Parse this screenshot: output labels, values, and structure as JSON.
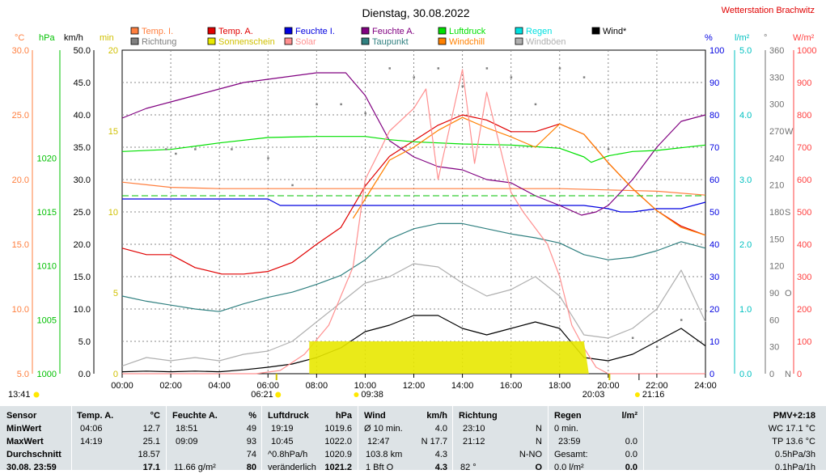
{
  "header": {
    "title": "Dienstag, 30.08.2022",
    "station": "Wetterstation Brachwitz"
  },
  "legend": [
    {
      "label": "Temp. I.",
      "color": "#ff7f3f"
    },
    {
      "label": "Richtung",
      "color": "#808080"
    },
    {
      "label": "Temp. A.",
      "color": "#e00000"
    },
    {
      "label": "Sonnenschein",
      "color": "#e8e800"
    },
    {
      "label": "Feuchte I.",
      "color": "#0000e0"
    },
    {
      "label": "Solar",
      "color": "#ff9090"
    },
    {
      "label": "Feuchte A.",
      "color": "#800080"
    },
    {
      "label": "Taupunkt",
      "color": "#308080"
    },
    {
      "label": "Luftdruck",
      "color": "#00e000"
    },
    {
      "label": "Windchill",
      "color": "#ff8000"
    },
    {
      "label": "Regen",
      "color": "#00e0e0"
    },
    {
      "label": "Windböen",
      "color": "#b0b0b0"
    },
    {
      "label": "Wind*",
      "color": "#000000"
    }
  ],
  "axis_units": {
    "temp": "°C",
    "pressure": "hPa",
    "wind": "km/h",
    "sun": "min",
    "humidity": "%",
    "rain": "l/m²",
    "direction": "°",
    "solar": "W/m²"
  },
  "chart_data": {
    "type": "line",
    "x_ticks": [
      "00:00",
      "02:00",
      "04:00",
      "06:00",
      "08:00",
      "10:00",
      "12:00",
      "14:00",
      "16:00",
      "18:00",
      "20:00",
      "22:00",
      "24:00"
    ],
    "x_range": [
      0,
      24
    ],
    "axes": {
      "temp": {
        "range": [
          5,
          30
        ],
        "ticks": [
          "5.0",
          "10.0",
          "15.0",
          "20.0",
          "25.0",
          "30.0"
        ],
        "color": "#ff7f3f"
      },
      "pressure": {
        "range": [
          1000,
          1030
        ],
        "ticks": [
          "1000",
          "1005",
          "1010",
          "1015",
          "1020"
        ],
        "color": "#00c000"
      },
      "wind": {
        "range": [
          0,
          50
        ],
        "ticks": [
          "0.0",
          "5.0",
          "10.0",
          "15.0",
          "20.0",
          "25.0",
          "30.0",
          "35.0",
          "40.0",
          "45.0",
          "50.0"
        ],
        "color": "#000000"
      },
      "sun": {
        "range": [
          0,
          20
        ],
        "ticks": [
          "0",
          "5",
          "10",
          "15",
          "20"
        ],
        "color": "#d0c000"
      },
      "humidity": {
        "range": [
          0,
          100
        ],
        "ticks": [
          "0",
          "10",
          "20",
          "30",
          "40",
          "50",
          "60",
          "70",
          "80",
          "90",
          "100"
        ],
        "color": "#0000e0"
      },
      "rain": {
        "range": [
          0,
          5
        ],
        "ticks": [
          "0.0",
          "1.0",
          "2.0",
          "3.0",
          "4.0",
          "5.0"
        ],
        "color": "#00c0c0"
      },
      "direction": {
        "range": [
          0,
          360
        ],
        "ticks": [
          "0",
          "30",
          "60",
          "90",
          "120",
          "150",
          "180",
          "210",
          "240",
          "270",
          "300",
          "330",
          "360"
        ],
        "labels": {
          "0": "N",
          "90": "O",
          "180": "S",
          "270": "W"
        },
        "color": "#707070"
      },
      "solar": {
        "range": [
          0,
          1000
        ],
        "ticks": [
          "0",
          "100",
          "200",
          "300",
          "400",
          "500",
          "600",
          "700",
          "800",
          "900",
          "1000"
        ],
        "color": "#ff4040"
      }
    },
    "series": [
      {
        "name": "Temp. I.",
        "axis": "temp",
        "color": "#ff7f3f",
        "x": [
          0,
          1,
          2,
          4,
          6,
          8,
          10,
          12,
          14,
          16,
          18,
          20,
          22,
          24
        ],
        "y": [
          19.8,
          19.6,
          19.4,
          19.3,
          19.3,
          19.3,
          19.3,
          19.3,
          19.3,
          19.3,
          19.3,
          19.2,
          19.1,
          18.8
        ]
      },
      {
        "name": "Temp. A.",
        "axis": "temp",
        "color": "#e00000",
        "x": [
          0,
          1,
          2,
          3,
          4.1,
          5,
          6,
          7,
          8,
          9,
          10,
          11,
          12,
          13,
          14,
          15,
          16,
          17,
          18,
          19,
          20,
          21,
          22,
          23,
          24
        ],
        "y": [
          14.7,
          14.2,
          14.2,
          13.2,
          12.7,
          12.7,
          12.9,
          13.6,
          15.0,
          16.3,
          19.5,
          21.8,
          23.0,
          24.2,
          25.0,
          24.6,
          23.7,
          23.7,
          24.3,
          23.5,
          21.3,
          19.3,
          17.6,
          16.4,
          15.7
        ]
      },
      {
        "name": "Feuchte I.",
        "axis": "humidity",
        "color": "#0000e0",
        "x": [
          0,
          2,
          4,
          6,
          6.5,
          8,
          10,
          12,
          14,
          16,
          18,
          19,
          20,
          20.5,
          21,
          22,
          23,
          24
        ],
        "y": [
          54,
          54,
          54,
          54,
          52,
          52,
          52,
          52,
          52,
          52,
          52,
          52,
          51,
          50,
          50,
          51,
          51,
          53
        ]
      },
      {
        "name": "Feuchte A.",
        "axis": "humidity",
        "color": "#800080",
        "x": [
          0,
          1,
          2,
          3,
          4,
          5,
          6,
          7,
          8,
          9,
          9.2,
          10,
          11,
          12,
          13,
          14,
          15,
          16,
          17,
          18,
          18.9,
          19.5,
          20,
          21,
          22,
          23,
          24
        ],
        "y": [
          79,
          82,
          84,
          86,
          88,
          90,
          91,
          92,
          93,
          93,
          93,
          86,
          72,
          67,
          64,
          63,
          60,
          59,
          55,
          52,
          49,
          50,
          52,
          60,
          70,
          78,
          80
        ]
      },
      {
        "name": "Taupunkt",
        "axis": "temp",
        "color": "#308080",
        "x": [
          0,
          1,
          2,
          3,
          4,
          5,
          6,
          7,
          8,
          9,
          10,
          11,
          12,
          13,
          14,
          15,
          16,
          17,
          18,
          19,
          20,
          21,
          22,
          23,
          24
        ],
        "y": [
          11.0,
          10.6,
          10.3,
          10.0,
          9.8,
          10.4,
          10.9,
          11.3,
          11.9,
          12.6,
          13.8,
          15.4,
          16.2,
          16.6,
          16.6,
          16.2,
          15.8,
          15.5,
          15.1,
          14.2,
          13.8,
          14.0,
          14.5,
          15.2,
          14.7
        ]
      },
      {
        "name": "Luftdruck",
        "axis": "pressure",
        "color": "#00e000",
        "x": [
          0,
          2,
          4,
          6,
          8,
          10,
          11,
          12,
          14,
          16,
          18,
          19,
          19.3,
          20,
          21,
          22,
          24
        ],
        "y": [
          1020.6,
          1020.8,
          1021.4,
          1021.9,
          1022.0,
          1022.0,
          1021.7,
          1021.5,
          1021.3,
          1021.2,
          1020.9,
          1020.1,
          1019.6,
          1020.2,
          1020.6,
          1020.7,
          1021.2
        ]
      },
      {
        "name": "Windchill",
        "axis": "temp",
        "color": "#ff8000",
        "x": [
          9.5,
          10,
          10.5,
          11,
          12,
          13,
          14,
          15,
          16,
          17,
          18,
          19,
          20,
          21,
          22,
          23,
          24
        ],
        "y": [
          17.0,
          18.5,
          20.0,
          21.5,
          22.5,
          23.8,
          24.8,
          24.0,
          23.3,
          22.5,
          24.3,
          23.5,
          21.3,
          19.3,
          17.6,
          16.3,
          15.7
        ]
      },
      {
        "name": "Wind*",
        "axis": "wind",
        "color": "#000000",
        "x": [
          0,
          1,
          2,
          3,
          4,
          5,
          6,
          7,
          8,
          9,
          10,
          11,
          12,
          13,
          14,
          15,
          16,
          17,
          18,
          19,
          20,
          21,
          22,
          23,
          24
        ],
        "y": [
          0.3,
          0.4,
          0.3,
          0.4,
          0.3,
          0.6,
          1.0,
          1.5,
          2.5,
          4.0,
          6.5,
          7.5,
          9.0,
          9.0,
          7.0,
          6.0,
          7.0,
          8.0,
          7.0,
          2.5,
          2.0,
          3.0,
          5.0,
          7.0,
          4.3
        ]
      },
      {
        "name": "Windböen",
        "axis": "wind",
        "color": "#b0b0b0",
        "x": [
          0,
          1,
          2,
          3,
          4,
          5,
          6,
          7,
          8,
          9,
          10,
          11,
          12,
          13,
          14,
          15,
          16,
          17,
          18,
          19,
          20,
          21,
          22,
          23,
          24
        ],
        "y": [
          1.2,
          2.5,
          2.0,
          2.5,
          2.0,
          3.0,
          3.5,
          5.0,
          8.0,
          11.0,
          14.0,
          15.0,
          17.0,
          16.5,
          14.0,
          12.0,
          13.0,
          15.0,
          12.0,
          6.0,
          5.5,
          7.0,
          10.0,
          16.0,
          8.0
        ]
      },
      {
        "name": "Solar",
        "axis": "solar",
        "color": "#ff9090",
        "x": [
          0,
          5.5,
          6.5,
          7.5,
          8.5,
          9.5,
          10,
          11,
          12,
          12.5,
          13,
          14,
          14.5,
          15,
          16,
          16.5,
          17,
          17.5,
          18,
          18.5,
          19,
          19.5,
          20,
          24
        ],
        "y": [
          0,
          0,
          10,
          60,
          150,
          330,
          600,
          750,
          820,
          880,
          600,
          940,
          650,
          870,
          560,
          500,
          450,
          400,
          300,
          150,
          80,
          20,
          0,
          0
        ]
      },
      {
        "name": "Sonnenschein",
        "axis": "sun",
        "color": "#e8e800",
        "x": [
          7.7,
          8,
          9,
          10,
          11,
          12,
          13,
          14,
          15,
          16,
          17,
          18,
          19,
          19.2
        ],
        "y": [
          2.0,
          2.0,
          2.0,
          2.0,
          2.0,
          2.0,
          2.0,
          2.0,
          2.0,
          2.0,
          2.0,
          2.0,
          2.0,
          0
        ]
      },
      {
        "name": "Richtung",
        "axis": "direction",
        "color": "#808080",
        "x": [
          1.8,
          2.2,
          3,
          4.5,
          6,
          7,
          8,
          9,
          10,
          11,
          12,
          13,
          14,
          15,
          16,
          17,
          18,
          19,
          20,
          21,
          22,
          23,
          24
        ],
        "y": [
          250,
          245,
          250,
          250,
          240,
          210,
          300,
          300,
          290,
          340,
          330,
          340,
          320,
          340,
          330,
          300,
          340,
          330,
          250,
          40,
          30,
          60,
          70
        ]
      }
    ],
    "grid": "dotted",
    "bottom_markers": {
      "sunrise": "06:21",
      "sunset": "20:03",
      "moonrise": "09:38",
      "moonset": "21:16",
      "current_time": "13:41"
    }
  },
  "stats": {
    "row_labels": [
      "Sensor",
      "MinWert",
      "MaxWert",
      "Durchschnitt",
      "30.08. 23:59"
    ],
    "temp": {
      "header": "Temp. A.",
      "unit": "°C",
      "rows": [
        [
          "04:06",
          "12.7"
        ],
        [
          "14:19",
          "25.1"
        ],
        [
          "",
          "18.57"
        ],
        [
          "",
          "17.1"
        ]
      ]
    },
    "humidity": {
      "header": "Feuchte A.",
      "unit": "%",
      "rows": [
        [
          "18:51",
          "49"
        ],
        [
          "09:09",
          "93"
        ],
        [
          "",
          "74"
        ],
        [
          "11.66 g/m²",
          "80"
        ]
      ]
    },
    "pressure": {
      "header": "Luftdruck",
      "unit": "hPa",
      "rows": [
        [
          "19:19",
          "1019.6"
        ],
        [
          "10:45",
          "1022.0"
        ],
        [
          "^0.8hPa/h",
          "1020.9"
        ],
        [
          "veränderlich",
          "1021.2"
        ]
      ]
    },
    "wind": {
      "header": "Wind",
      "unit": "km/h",
      "rows": [
        [
          "Ø 10 min.",
          "4.0"
        ],
        [
          "12:47",
          "N 17.7"
        ],
        [
          "103.8 km",
          "4.3"
        ],
        [
          "1 Bft O",
          "4.3"
        ]
      ]
    },
    "direction": {
      "header": "Richtung",
      "rows": [
        [
          "23:10",
          "N"
        ],
        [
          "21:12",
          "N"
        ],
        [
          "",
          "N-NO"
        ],
        [
          "82 °",
          "O"
        ]
      ]
    },
    "rain": {
      "header": "Regen",
      "unit": "l/m²",
      "rows": [
        [
          "0 min.",
          ""
        ],
        [
          "23:59",
          "0.0"
        ],
        [
          "Gesamt:",
          "0.0"
        ],
        [
          "0.0 l/m²",
          "0.0"
        ]
      ]
    },
    "extra": {
      "header": "PMV+2:18",
      "rows": [
        "WC 17.1 °C",
        "TP 13.6 °C",
        "0.5hPa/3h",
        "0.1hPa/1h"
      ]
    }
  }
}
